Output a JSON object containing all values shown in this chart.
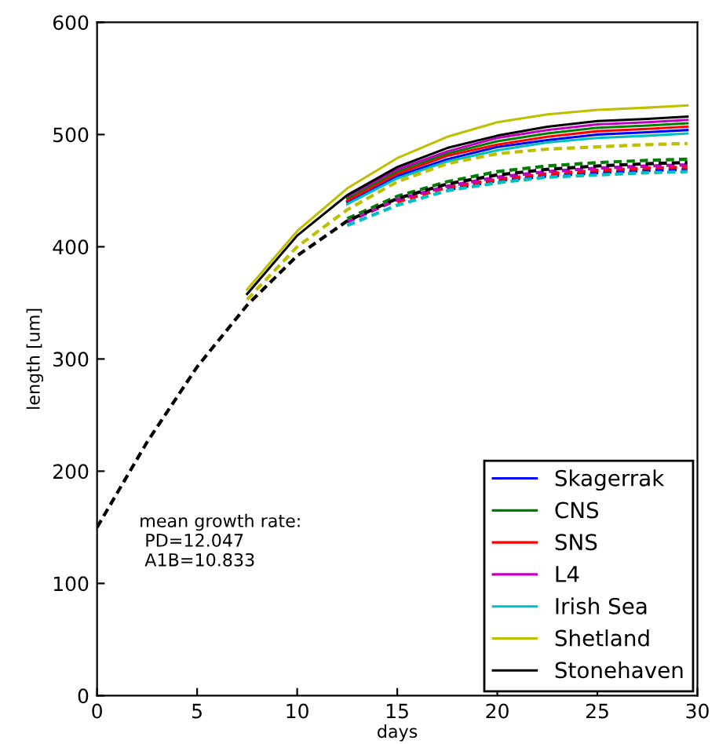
{
  "chart_data": {
    "type": "line",
    "xlabel": "days",
    "ylabel": "length [um]",
    "x": [
      0,
      2.5,
      5,
      7.5,
      10,
      12.5,
      15,
      17.5,
      20,
      22.5,
      25,
      27.5,
      29.5
    ],
    "xlim": [
      0,
      30
    ],
    "xticks": [
      0,
      5,
      10,
      15,
      20,
      25,
      30
    ],
    "ylim": [
      0,
      600
    ],
    "yticks": [
      0,
      100,
      200,
      300,
      400,
      500,
      600
    ],
    "grid": false,
    "legend": "bottom right",
    "marker": "none",
    "annotations": [
      "mean growth rate:\n PD=12.047\n A1B=10.833"
    ],
    "series": [
      {
        "name": "Skagerrak",
        "color": "#0000ff",
        "line_style": "solid",
        "values": [
          null,
          null,
          null,
          null,
          null,
          440,
          463,
          478,
          489,
          495,
          500,
          502,
          504
        ]
      },
      {
        "name": "CNS",
        "color": "#008000",
        "line_style": "solid",
        "values": [
          null,
          null,
          null,
          null,
          null,
          443,
          467,
          483,
          494,
          501,
          506,
          508,
          510
        ]
      },
      {
        "name": "SNS",
        "color": "#ff0000",
        "line_style": "solid",
        "values": [
          null,
          null,
          null,
          null,
          null,
          441,
          465,
          481,
          491,
          498,
          503,
          505,
          507
        ]
      },
      {
        "name": "L4",
        "color": "#bf00bf",
        "line_style": "solid",
        "values": [
          null,
          null,
          null,
          null,
          null,
          445,
          469,
          485,
          497,
          504,
          509,
          511,
          513
        ]
      },
      {
        "name": "Irish Sea",
        "color": "#00bfbf",
        "line_style": "solid",
        "values": [
          null,
          null,
          null,
          null,
          null,
          438,
          461,
          476,
          486,
          493,
          497,
          499,
          501
        ]
      },
      {
        "name": "Shetland",
        "color": "#bfbf00",
        "line_style": "solid",
        "values": [
          null,
          null,
          null,
          362,
          414,
          452,
          479,
          498,
          511,
          518,
          522,
          524,
          526
        ]
      },
      {
        "name": "Stonehaven",
        "color": "#000000",
        "line_style": "solid",
        "values": [
          null,
          null,
          null,
          358,
          410,
          446,
          471,
          488,
          499,
          507,
          512,
          514,
          516
        ]
      },
      {
        "color": "#0000ff",
        "line_style": "dashed",
        "values": [
          null,
          null,
          null,
          null,
          null,
          null,
          null,
          451,
          459,
          463,
          466,
          468,
          469
        ]
      },
      {
        "color": "#008000",
        "line_style": "dashed",
        "values": [
          null,
          null,
          null,
          null,
          null,
          425,
          445,
          458,
          467,
          472,
          475,
          477,
          478
        ]
      },
      {
        "color": "#ff0000",
        "line_style": "dashed",
        "values": [
          null,
          null,
          null,
          null,
          null,
          null,
          440,
          453,
          460,
          465,
          468,
          470,
          471
        ]
      },
      {
        "color": "#bf00bf",
        "line_style": "dashed",
        "values": [
          null,
          null,
          null,
          null,
          null,
          422,
          442,
          454,
          462,
          467,
          470,
          472,
          473
        ]
      },
      {
        "color": "#00bfbf",
        "line_style": "dashed",
        "values": [
          null,
          null,
          null,
          null,
          null,
          419,
          437,
          450,
          457,
          462,
          464,
          466,
          467
        ]
      },
      {
        "color": "#bfbf00",
        "line_style": "dashed",
        "values": [
          null,
          null,
          null,
          353,
          400,
          433,
          458,
          474,
          483,
          487,
          489,
          491,
          492
        ]
      },
      {
        "color": "#000000",
        "line_style": "dashed",
        "values": [
          150,
          226,
          293,
          348,
          392,
          423,
          443,
          456,
          464,
          469,
          472,
          474,
          475
        ]
      }
    ]
  }
}
